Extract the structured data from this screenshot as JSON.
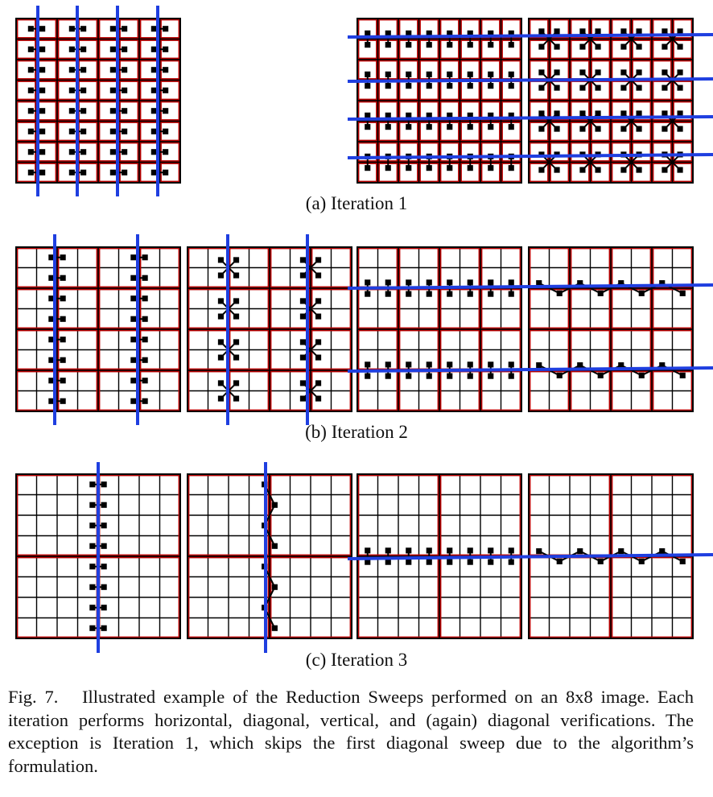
{
  "figure": {
    "subcaptions": {
      "a": "(a) Iteration 1",
      "b": "(b) Iteration 2",
      "c": "(c) Iteration 3"
    },
    "caption_label": "Fig. 7.",
    "caption_text": "Illustrated example of the Reduction Sweeps performed on an 8x8 image. Each iteration performs horizontal, diagonal, vertical, and (again) diagonal verifications. The exception is Iteration 1, which skips the first diagonal sweep due to the algorithm’s formulation.",
    "grid_size": 8,
    "colors": {
      "grid_line": "#000000",
      "block_border": "#b80000",
      "sweep_line": "#1f3fe0",
      "marker": "#000000"
    }
  }
}
